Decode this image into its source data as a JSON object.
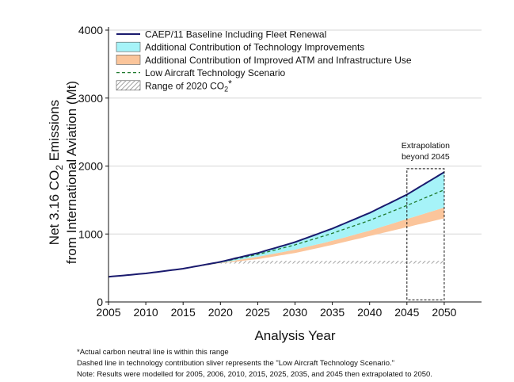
{
  "chart_data": {
    "type": "area",
    "ylabel_line1": "Net 3.16 CO",
    "ylabel_sub": "2",
    "ylabel_line1_tail": " Emissions",
    "ylabel_line2": "from International Aviation (Mt)",
    "xlabel": "Analysis Year",
    "xlim": [
      2005,
      2055
    ],
    "ylim": [
      0,
      4000
    ],
    "x_ticks": [
      "2005",
      "2010",
      "2015",
      "2020",
      "2025",
      "2030",
      "2035",
      "2040",
      "2045",
      "2050"
    ],
    "x_tick_values": [
      2005,
      2010,
      2015,
      2020,
      2025,
      2030,
      2035,
      2040,
      2045,
      2050
    ],
    "y_ticks": [
      "0",
      "1000",
      "2000",
      "3000",
      "4000"
    ],
    "y_tick_values": [
      0,
      1000,
      2000,
      3000,
      4000
    ],
    "grid": "horizontal",
    "legend_position": "top-left",
    "x": [
      2005,
      2010,
      2015,
      2020,
      2025,
      2030,
      2035,
      2040,
      2045,
      2050
    ],
    "series": [
      {
        "name": "CAEP/11 Baseline Including Fleet Renewal",
        "kind": "line",
        "color": "#1a1a6e",
        "values": [
          370,
          420,
          490,
          590,
          720,
          880,
          1080,
          1310,
          1580,
          1910
        ]
      },
      {
        "name": "Additional Contribution of Technology Improvements",
        "kind": "band",
        "color": "#a6f3f8",
        "lower": [
          370,
          420,
          490,
          575,
          665,
          770,
          900,
          1050,
          1220,
          1390
        ],
        "upper": [
          370,
          420,
          490,
          590,
          720,
          880,
          1080,
          1310,
          1580,
          1910
        ]
      },
      {
        "name": "Additional Contribution of Improved ATM and Infrastructure Use",
        "kind": "band",
        "color": "#fbc59b",
        "lower": [
          370,
          420,
          490,
          570,
          630,
          720,
          840,
          970,
          1100,
          1230
        ],
        "upper": [
          370,
          420,
          490,
          575,
          665,
          770,
          900,
          1050,
          1220,
          1390
        ]
      },
      {
        "name": "Low Aircraft Technology Scenario",
        "kind": "dashed",
        "color": "#1f7a2e",
        "values": [
          370,
          420,
          490,
          585,
          700,
          840,
          1010,
          1200,
          1420,
          1650
        ]
      },
      {
        "name": "Range of 2020 CO",
        "name_sub": "2",
        "name_tail": "*",
        "kind": "hatch",
        "color": "#8c8c8c",
        "x_range": [
          2020,
          2050
        ],
        "lower": 565,
        "upper": 605
      }
    ],
    "annotation": {
      "text_line1": "Extrapolation",
      "text_line2": "beyond 2045",
      "x_range": [
        2045,
        2050
      ],
      "y_range": [
        30,
        1960
      ]
    }
  },
  "notes": [
    "*Actual carbon neutral line is within this range",
    "Dashed line in technology contribution sliver represents the \"Low Aircraft Technology Scenario.\"",
    "Note: Results were modelled for 2005, 2006, 2010, 2015, 2025, 2035, and 2045 then extrapolated to 2050."
  ]
}
